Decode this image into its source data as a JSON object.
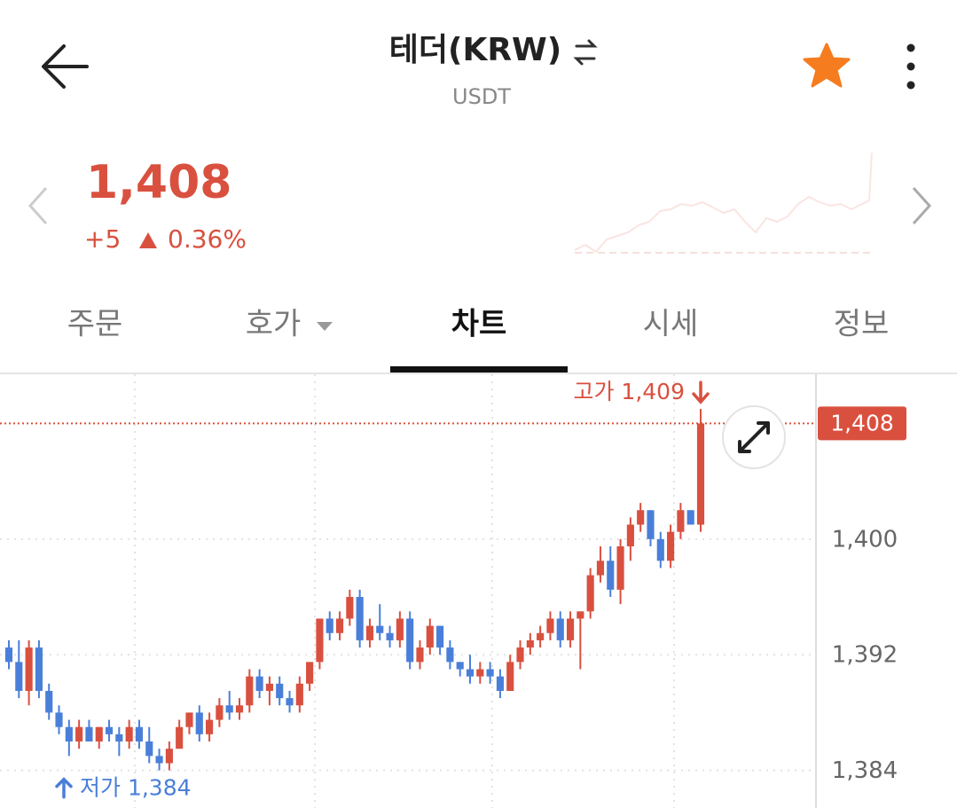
{
  "header": {
    "title": "테더(KRW)",
    "symbol": "USDT"
  },
  "ticker": {
    "price": "1,408",
    "change": "+5",
    "change_rate": "0.36%"
  },
  "tabs": [
    "주문",
    "호가",
    "차트",
    "시세",
    "정보"
  ],
  "active_tab": 2,
  "chart_data": {
    "type": "candlestick",
    "up_color": "#d9503f",
    "down_color": "#4a7fd9",
    "ylim": [
      1381.4,
      1411.4
    ],
    "yticks": [
      {
        "value": 1400,
        "label": "1,400"
      },
      {
        "value": 1392,
        "label": "1,392"
      },
      {
        "value": 1384,
        "label": "1,384"
      }
    ],
    "grid": true,
    "open": [
      1392.5,
      1391.5,
      1389.5,
      1392.5,
      1389.5,
      1388,
      1387,
      1386,
      1387,
      1386,
      1387,
      1386.5,
      1386,
      1387,
      1386,
      1385,
      1384.5,
      1385.5,
      1387,
      1388,
      1386.5,
      1387.5,
      1388.5,
      1388,
      1388.5,
      1390.5,
      1389.5,
      1390,
      1389,
      1388.5,
      1390,
      1391.5,
      1394.5,
      1393.5,
      1394.5,
      1396,
      1393,
      1394,
      1393.5,
      1393,
      1394.5,
      1391.5,
      1392.5,
      1394,
      1392.5,
      1391.5,
      1391,
      1390.5,
      1391,
      1390.5,
      1389.5,
      1391.5,
      1392.5,
      1393,
      1393.5,
      1394.5,
      1393,
      1394.5,
      1395,
      1397.5,
      1398.5,
      1396.5,
      1399.5,
      1401,
      1402,
      1400,
      1398.5,
      1400.5,
      1402,
      1401
    ],
    "high": [
      1393,
      1393,
      1393,
      1393,
      1390,
      1388.5,
      1387.5,
      1387.5,
      1387.5,
      1387,
      1387.5,
      1387,
      1387.5,
      1387.5,
      1387,
      1385.5,
      1386,
      1387.5,
      1388,
      1388.5,
      1388,
      1389,
      1389.5,
      1389,
      1391,
      1391,
      1390.5,
      1390.5,
      1389.5,
      1390.5,
      1391.5,
      1394.5,
      1395,
      1395,
      1396.5,
      1396.5,
      1394.5,
      1395.5,
      1394,
      1395,
      1395,
      1393,
      1394.5,
      1394,
      1393,
      1391.5,
      1392,
      1391.5,
      1391.5,
      1391,
      1392,
      1393,
      1393.5,
      1394,
      1395,
      1395,
      1395,
      1395,
      1398,
      1399.5,
      1399.5,
      1400,
      1401.5,
      1402.5,
      1402,
      1400.5,
      1401,
      1402.5,
      1402,
      1409
    ],
    "low": [
      1391,
      1389,
      1388.5,
      1389,
      1387.5,
      1386.5,
      1385,
      1385.5,
      1386,
      1385.5,
      1386,
      1385,
      1385.5,
      1385.5,
      1384.5,
      1384,
      1384,
      1385.5,
      1386.5,
      1386,
      1386,
      1387,
      1387.5,
      1387.5,
      1388,
      1389,
      1388.5,
      1388.5,
      1388,
      1388,
      1389.5,
      1391,
      1393,
      1393,
      1394,
      1392.5,
      1392.5,
      1393,
      1392.5,
      1392.5,
      1391,
      1391,
      1392,
      1392,
      1391,
      1390.5,
      1390,
      1390,
      1390,
      1389,
      1389.5,
      1391,
      1392,
      1392.5,
      1393,
      1392.5,
      1392.5,
      1391,
      1394.5,
      1397,
      1396,
      1395.5,
      1398.5,
      1400.5,
      1399.5,
      1398,
      1398,
      1400,
      1401,
      1400.5
    ],
    "close": [
      1391.5,
      1389.5,
      1392.5,
      1389.5,
      1388,
      1387,
      1386,
      1387,
      1386,
      1387,
      1386.5,
      1386,
      1387,
      1386,
      1385,
      1384.5,
      1385.5,
      1387,
      1388,
      1386.5,
      1387.5,
      1388.5,
      1388,
      1388.5,
      1390.5,
      1389.5,
      1390,
      1389,
      1388.5,
      1390,
      1391.5,
      1394.5,
      1393.5,
      1394.5,
      1396,
      1393,
      1394,
      1393.5,
      1393,
      1394.5,
      1391.5,
      1392.5,
      1394,
      1392.5,
      1391.5,
      1391,
      1390.5,
      1391,
      1390.5,
      1389.5,
      1391.5,
      1392.5,
      1393,
      1393.5,
      1394.5,
      1393,
      1394.5,
      1395,
      1397.5,
      1398.5,
      1396.5,
      1399.5,
      1401,
      1402,
      1400,
      1398.5,
      1400.5,
      1402,
      1401,
      1408
    ],
    "high_marker": {
      "value": 1409,
      "label": "고가 1,409",
      "index": 69
    },
    "low_marker": {
      "value": 1384,
      "label": "저가 1,384",
      "index": 15
    },
    "last_price": {
      "value": 1408,
      "label": "1,408"
    }
  }
}
